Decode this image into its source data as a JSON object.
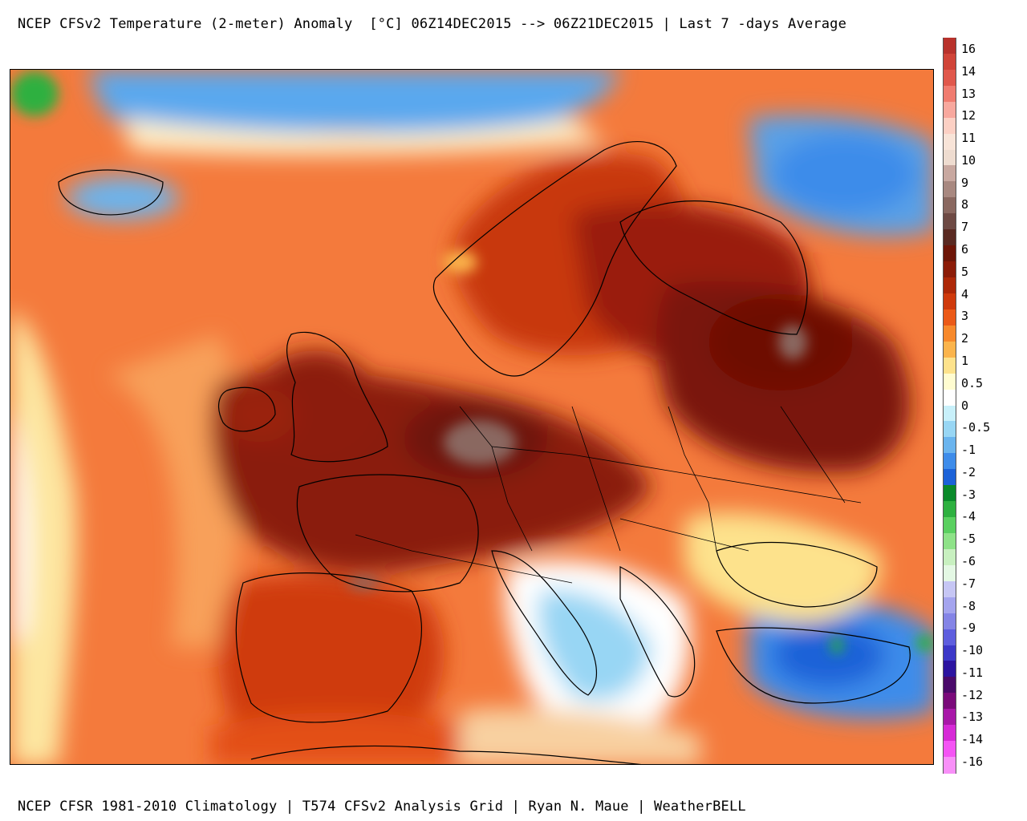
{
  "title": "NCEP CFSv2 Temperature (2-meter) Anomaly  [°C] 06Z14DEC2015 --> 06Z21DEC2015 | Last 7 -days Average",
  "footer": "NCEP CFSR 1981-2010 Climatology | T574 CFSv2 Analysis Grid | Ryan N. Maue | WeatherBELL",
  "map": {
    "region": "Europe",
    "variable": "2-meter temperature anomaly"
  },
  "colorbar": {
    "unit": "°C",
    "labels": [
      "16",
      "14",
      "13",
      "12",
      "11",
      "10",
      "9",
      "8",
      "7",
      "6",
      "5",
      "4",
      "3",
      "2",
      "1",
      "0.5",
      "0",
      "-0.5",
      "-1",
      "-2",
      "-3",
      "-4",
      "-5",
      "-6",
      "-7",
      "-8",
      "-9",
      "-10",
      "-11",
      "-12",
      "-13",
      "-14",
      "-16"
    ],
    "colors": [
      "#b8322c",
      "#d04438",
      "#e0584c",
      "#f07c70",
      "#f8a89e",
      "#fcd0c4",
      "#f8e4d8",
      "#eedcd0",
      "#c8a8a0",
      "#a88880",
      "#8a6860",
      "#6e4a44",
      "#5a2a22",
      "#6e1608",
      "#8c1c08",
      "#ad2808",
      "#cf3a0c",
      "#eb5a18",
      "#f7892c",
      "#fbb44c",
      "#fde28c",
      "#fffcd0",
      "#ffffff",
      "#c8f0fa",
      "#98d6f4",
      "#6ab4ee",
      "#3e8cea",
      "#1c62d8",
      "#0a8a2a",
      "#2eb040",
      "#5ad060",
      "#8ee288",
      "#c8f0c0",
      "#e4f8e4",
      "#c6c6f4",
      "#a4a4ee",
      "#8484e6",
      "#5e5ede",
      "#3c38c8",
      "#2c14a0",
      "#4a0a6a",
      "#7a0a7a",
      "#a818a8",
      "#d62ad6",
      "#f454f4",
      "#f890f8"
    ]
  }
}
